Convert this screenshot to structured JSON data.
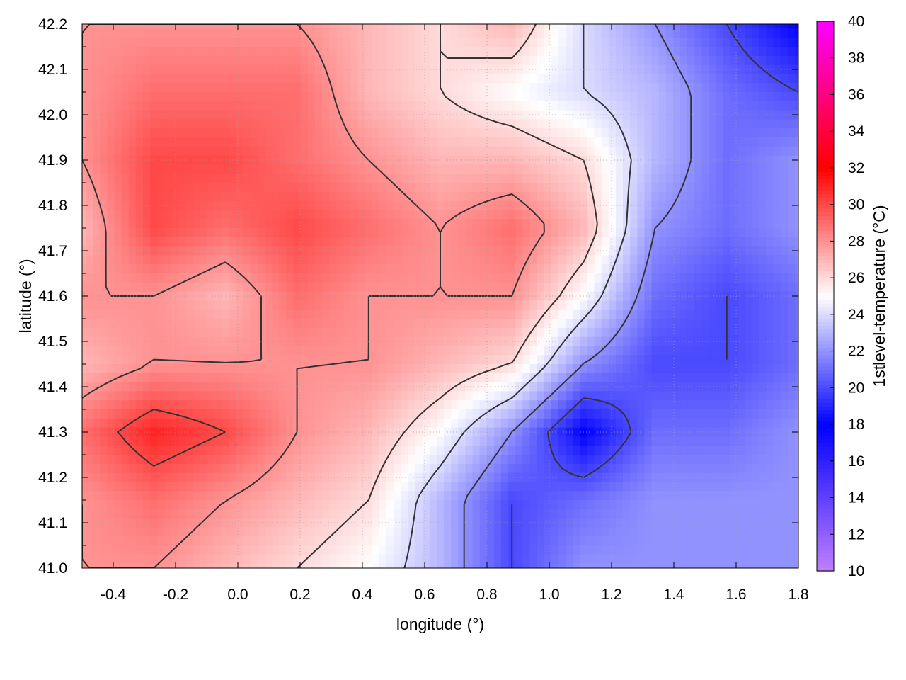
{
  "chart_data": {
    "type": "heatmap",
    "xlabel": "longitude (°)",
    "ylabel": "latitude (°)",
    "colorbar_label": "1stlevel-temperature (°C)",
    "xlim": [
      -0.5,
      1.8
    ],
    "ylim": [
      41.0,
      42.2
    ],
    "clim": [
      10,
      40
    ],
    "x_ticks": [
      -0.4,
      -0.2,
      0.0,
      0.2,
      0.4,
      0.6,
      0.8,
      1.0,
      1.2,
      1.4,
      1.6,
      1.8
    ],
    "x_tick_labels": [
      "-0.4",
      "-0.2",
      "0.0",
      "0.2",
      "0.4",
      "0.6",
      "0.8",
      "1.0",
      "1.2",
      "1.4",
      "1.6",
      "1.8"
    ],
    "y_ticks": [
      41.0,
      41.1,
      41.2,
      41.3,
      41.4,
      41.5,
      41.6,
      41.7,
      41.8,
      41.9,
      42.0,
      42.1,
      42.2
    ],
    "y_tick_labels": [
      "41.0",
      "41.1",
      "41.2",
      "41.3",
      "41.4",
      "41.5",
      "41.6",
      "41.7",
      "41.8",
      "41.9",
      "42.0",
      "42.1",
      "42.2"
    ],
    "c_ticks": [
      10,
      12,
      14,
      16,
      18,
      20,
      22,
      24,
      26,
      28,
      30,
      32,
      34,
      36,
      38,
      40
    ],
    "c_tick_labels": [
      "10",
      "12",
      "14",
      "16",
      "18",
      "20",
      "22",
      "24",
      "26",
      "28",
      "30",
      "32",
      "34",
      "36",
      "38",
      "40"
    ],
    "colormap_stops": [
      {
        "value": 10,
        "color": "#c080ff"
      },
      {
        "value": 18,
        "color": "#0000ff"
      },
      {
        "value": 25,
        "color": "#ffffff"
      },
      {
        "value": 32,
        "color": "#ff0000"
      },
      {
        "value": 40,
        "color": "#ff00ff"
      }
    ],
    "grid": true,
    "contour_interval": 2,
    "field_grid": {
      "lon": [
        -0.5,
        -0.27,
        -0.04,
        0.19,
        0.42,
        0.65,
        0.88,
        1.11,
        1.34,
        1.57,
        1.8
      ],
      "lat": [
        42.2,
        42.05,
        41.9,
        41.75,
        41.6,
        41.45,
        41.3,
        41.15,
        41.0
      ],
      "values": [
        [
          28,
          28,
          28,
          28,
          27,
          26,
          27,
          24,
          22,
          20,
          18
        ],
        [
          28,
          29,
          29,
          29,
          27,
          26,
          25,
          24,
          23,
          21,
          20
        ],
        [
          28,
          30,
          30,
          29,
          28,
          27,
          27,
          26,
          23,
          21,
          22
        ],
        [
          27,
          30,
          29,
          30,
          29,
          28,
          29,
          27,
          22,
          21,
          22
        ],
        [
          28,
          28,
          27,
          29,
          28,
          28,
          28,
          25,
          21,
          20,
          21
        ],
        [
          27,
          28,
          28,
          28,
          28,
          27,
          26,
          22,
          20,
          20,
          21
        ],
        [
          29,
          31,
          30,
          28,
          27,
          25,
          22,
          18,
          21,
          21,
          22
        ],
        [
          28,
          29,
          28,
          27,
          26,
          23,
          20,
          21,
          22,
          22,
          22
        ],
        [
          28,
          28,
          27,
          26,
          25,
          23,
          20,
          22,
          22,
          22,
          22
        ]
      ]
    }
  }
}
